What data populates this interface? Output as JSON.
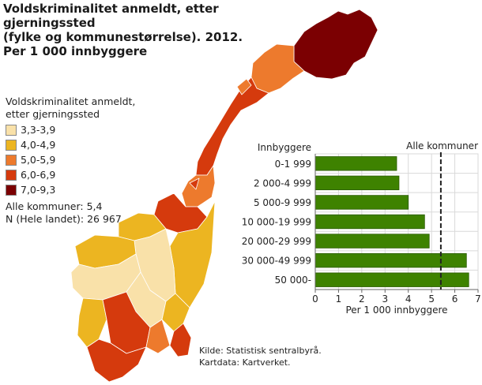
{
  "title": [
    "Voldskriminalitet anmeldt, etter gjerningssted",
    "(fylke og kommunestørrelse). 2012.",
    "Per 1 000 innbyggere"
  ],
  "legend": {
    "title": [
      "Voldskriminalitet anmeldt,",
      "etter gjerningssted"
    ],
    "items": [
      {
        "label": "3,3-3,9",
        "color": "#f9e1a9"
      },
      {
        "label": "4,0-4,9",
        "color": "#ecb521"
      },
      {
        "label": "5,0-5,9",
        "color": "#ed7a2d"
      },
      {
        "label": "6,0-6,9",
        "color": "#d53a0d"
      },
      {
        "label": "7,0-9,3",
        "color": "#7b0002"
      }
    ],
    "all_municipalities": "Alle kommuner: 5,4",
    "n_total": "N (Hele landet): 26 967"
  },
  "source": [
    "Kilde: Statistisk sentralbyrå.",
    "Kartdata: Kartverket."
  ],
  "chart_data": {
    "type": "bar",
    "orientation": "horizontal",
    "category_title": "Innbyggere",
    "categories": [
      "0-1 999",
      "2 000-4 999",
      "5 000-9 999",
      "10 000-19 999",
      "20 000-29 999",
      "30 000-49 999",
      "50 000-"
    ],
    "values": [
      3.5,
      3.6,
      4.0,
      4.7,
      4.9,
      6.5,
      6.6
    ],
    "xlabel": "Per 1 000 innbyggere",
    "xlim": [
      0,
      7
    ],
    "xticks": [
      "0",
      "1",
      "2",
      "3",
      "4",
      "5",
      "6",
      "7"
    ],
    "reference_line": {
      "label": "Alle kommuner",
      "value": 5.4
    },
    "bar_color": "#3e8200",
    "grid": true
  }
}
